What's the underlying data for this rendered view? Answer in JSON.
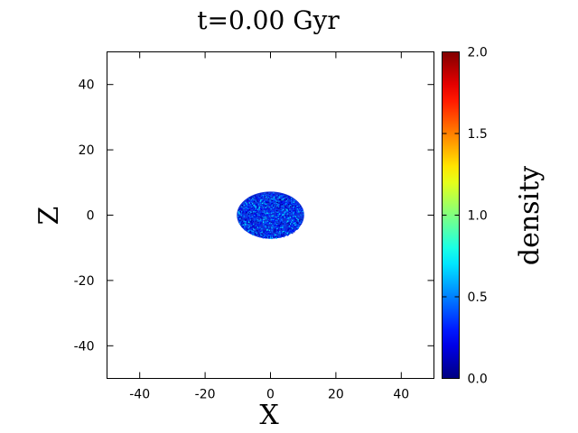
{
  "chart_data": {
    "type": "scatter",
    "title": "t=0.00 Gyr",
    "xlabel": "X",
    "ylabel": "Z",
    "xlim": [
      -50,
      50
    ],
    "ylim": [
      -50,
      50
    ],
    "x_ticks": [
      -40,
      -20,
      0,
      20,
      40
    ],
    "y_ticks": [
      -40,
      -20,
      0,
      20,
      40
    ],
    "x_tick_labels": [
      "-40",
      "-20",
      "0",
      "20",
      "40"
    ],
    "y_tick_labels": [
      "-40",
      "-20",
      "0",
      "20",
      "40"
    ],
    "grid": false,
    "distribution": {
      "shape": "ellipse",
      "center": [
        0,
        0
      ],
      "semi_axis_x": 10.3,
      "semi_axis_z": 7.2,
      "typical_density": 0.35
    },
    "colorbar": {
      "label": "density",
      "range": [
        0.0,
        2.0
      ],
      "ticks": [
        0.0,
        0.5,
        1.0,
        1.5,
        2.0
      ],
      "tick_labels": [
        "0.0",
        "0.5",
        "1.0",
        "1.5",
        "2.0"
      ],
      "colormap": "jet",
      "colors": [
        "#00008f",
        "#0000ff",
        "#00ffff",
        "#80ff80",
        "#ffff00",
        "#ff0000",
        "#800000"
      ]
    }
  }
}
